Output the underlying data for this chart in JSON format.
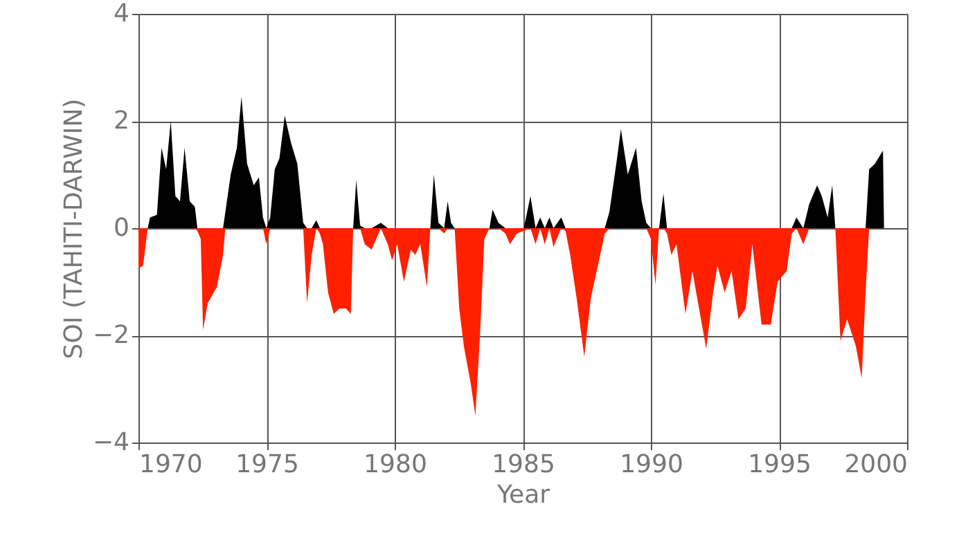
{
  "chart_data": {
    "type": "area",
    "xlabel": "Year",
    "ylabel": "SOI (TAHITI-DARWIN)",
    "x": [
      1970.0,
      1970.18,
      1970.36,
      1970.45,
      1970.72,
      1970.9,
      1971.08,
      1971.26,
      1971.44,
      1971.62,
      1971.8,
      1972.0,
      1972.2,
      1972.3,
      1972.43,
      1972.52,
      1972.7,
      1973.06,
      1973.3,
      1973.39,
      1973.6,
      1973.84,
      1974.02,
      1974.24,
      1974.5,
      1974.7,
      1974.86,
      1974.99,
      1975.14,
      1975.32,
      1975.5,
      1975.71,
      1975.95,
      1976.2,
      1976.43,
      1976.58,
      1976.76,
      1976.94,
      1977.08,
      1977.2,
      1977.4,
      1977.62,
      1977.84,
      1978.1,
      1978.29,
      1978.38,
      1978.5,
      1978.65,
      1978.83,
      1979.1,
      1979.46,
      1979.73,
      1979.9,
      1980.1,
      1980.36,
      1980.63,
      1980.8,
      1981.0,
      1981.26,
      1981.39,
      1981.53,
      1981.71,
      1981.93,
      1982.07,
      1982.2,
      1982.34,
      1982.52,
      1982.7,
      1982.97,
      1983.15,
      1983.33,
      1983.5,
      1983.7,
      1983.82,
      1984.05,
      1984.32,
      1984.5,
      1984.77,
      1985.04,
      1985.3,
      1985.5,
      1985.68,
      1985.86,
      1986.04,
      1986.2,
      1986.5,
      1986.67,
      1986.85,
      1987.1,
      1987.4,
      1987.66,
      1987.93,
      1988.2,
      1988.38,
      1988.65,
      1988.83,
      1989.1,
      1989.42,
      1989.64,
      1989.82,
      1990.0,
      1990.18,
      1990.32,
      1990.49,
      1990.63,
      1990.8,
      1991.0,
      1991.35,
      1991.62,
      1992.16,
      1992.43,
      1992.6,
      1992.88,
      1993.15,
      1993.42,
      1993.7,
      1993.96,
      1994.32,
      1994.68,
      1994.95,
      1995.3,
      1995.5,
      1995.68,
      1995.95,
      1996.18,
      1996.49,
      1996.67,
      1996.9,
      1997.08,
      1997.2,
      1997.4,
      1997.66,
      1998.0,
      1998.23,
      1998.38,
      1998.52,
      1998.74,
      1999.06,
      1999.1
    ],
    "series": [
      {
        "color": "#000000",
        "values": [
          0,
          0,
          0,
          0.2,
          0.25,
          1.5,
          1.1,
          2.0,
          0.6,
          0.5,
          1.5,
          0.5,
          0.4,
          0,
          0,
          0,
          0,
          0,
          0,
          0.3,
          1.0,
          1.5,
          2.45,
          1.2,
          0.8,
          0.95,
          0.2,
          0,
          0.2,
          1.1,
          1.3,
          2.1,
          1.6,
          1.2,
          0.1,
          0,
          0,
          0.15,
          0,
          0,
          0,
          0,
          0,
          0,
          0,
          0,
          0.9,
          0.05,
          0,
          0,
          0.1,
          0,
          0,
          0,
          0,
          0,
          0,
          0,
          0,
          0,
          1.0,
          0.1,
          0,
          0.5,
          0.1,
          0,
          0,
          0,
          0,
          0,
          0,
          0,
          0,
          0.35,
          0.1,
          0,
          0,
          0,
          0,
          0.6,
          0,
          0.2,
          0,
          0.2,
          0,
          0.2,
          0,
          0,
          0,
          0,
          0,
          0,
          0,
          0.3,
          1.2,
          1.85,
          1.0,
          1.5,
          0.5,
          0.1,
          0,
          0,
          0,
          0.65,
          0,
          0,
          0,
          0,
          0,
          0,
          0,
          0,
          0,
          0,
          0,
          0,
          0,
          0,
          0,
          0,
          0,
          0,
          0.2,
          0,
          0.45,
          0.8,
          0.6,
          0.2,
          0.8,
          0,
          0,
          0,
          0,
          0,
          0,
          1.1,
          1.2,
          1.45,
          0
        ]
      },
      {
        "color": "#ff2000",
        "values": [
          -0.75,
          -0.7,
          0,
          0,
          0,
          0,
          0,
          0,
          0,
          0,
          0,
          0,
          0,
          -0.05,
          -0.2,
          -1.9,
          -1.4,
          -1.1,
          -0.5,
          0,
          0,
          0,
          0,
          0,
          0,
          0,
          0,
          -0.3,
          0,
          0,
          0,
          0,
          0,
          0,
          0,
          -1.4,
          -0.5,
          0,
          -0.1,
          -0.3,
          -1.2,
          -1.6,
          -1.5,
          -1.5,
          -1.6,
          0,
          0,
          0,
          -0.3,
          -0.4,
          0,
          -0.3,
          -0.6,
          -0.3,
          -1.0,
          -0.4,
          -0.5,
          -0.3,
          -1.1,
          0,
          0,
          0,
          -0.1,
          0,
          0,
          0,
          -1.5,
          -2.2,
          -2.9,
          -3.5,
          -2.0,
          -0.2,
          0,
          0,
          0,
          -0.1,
          -0.3,
          -0.1,
          -0.05,
          0,
          -0.3,
          0,
          -0.3,
          0,
          -0.35,
          0,
          -0.05,
          -0.5,
          -1.3,
          -2.4,
          -1.3,
          -0.7,
          -0.1,
          0,
          0,
          0,
          0,
          0,
          0,
          0,
          -0.2,
          -1.05,
          0,
          0,
          -0.1,
          -0.5,
          -0.3,
          -1.6,
          -0.8,
          -2.25,
          -1.2,
          -0.7,
          -1.2,
          -0.8,
          -1.7,
          -1.5,
          -0.3,
          -1.8,
          -1.8,
          -1.0,
          -0.8,
          -0.1,
          0,
          -0.3,
          0,
          0,
          0,
          0,
          0,
          0,
          -2.1,
          -1.7,
          -2.2,
          -2.8,
          -1.2,
          0,
          0,
          0,
          0
        ]
      }
    ],
    "xlim": [
      1970,
      2000
    ],
    "xticks": [
      1970,
      1975,
      1980,
      1985,
      1990,
      1995,
      2000
    ],
    "ylim": [
      -4,
      4
    ],
    "yticks": [
      -4,
      -2,
      0,
      2,
      4
    ],
    "grid": true
  }
}
